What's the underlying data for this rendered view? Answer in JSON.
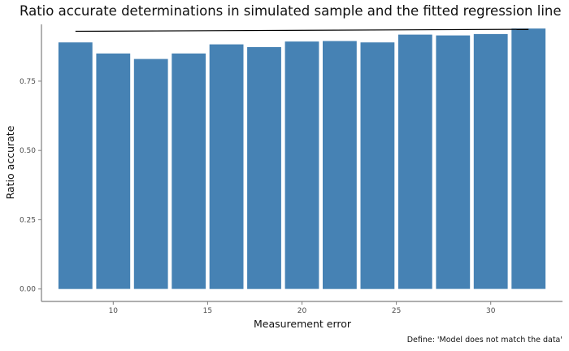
{
  "chart_data": {
    "type": "bar",
    "title": "Ratio accurate determinations in simulated sample and the fitted regression line",
    "xlabel": "Measurement error",
    "ylabel": "Ratio accurate",
    "caption": "Define: 'Model does not match the data'",
    "x": [
      8,
      10,
      12,
      14,
      16,
      18,
      20,
      22,
      24,
      26,
      28,
      30,
      32
    ],
    "values": [
      0.89,
      0.85,
      0.83,
      0.85,
      0.883,
      0.873,
      0.893,
      0.895,
      0.89,
      0.918,
      0.915,
      0.92,
      0.94
    ],
    "xlim": [
      6.2,
      33.8
    ],
    "ylim": [
      -0.045,
      0.955
    ],
    "x_ticks": [
      10,
      15,
      20,
      25,
      30
    ],
    "x_tick_labels": [
      "10",
      "15",
      "20",
      "25",
      "30"
    ],
    "y_ticks": [
      0,
      0.25,
      0.5,
      0.75
    ],
    "y_tick_labels": [
      "0.00",
      "0.25",
      "0.50",
      "0.75"
    ],
    "bar_width": 1.8,
    "regression_line": {
      "x": [
        8,
        32
      ],
      "y": [
        0.93,
        0.937
      ]
    },
    "bar_color": "#4682b4",
    "grid": false,
    "legend": "none"
  }
}
